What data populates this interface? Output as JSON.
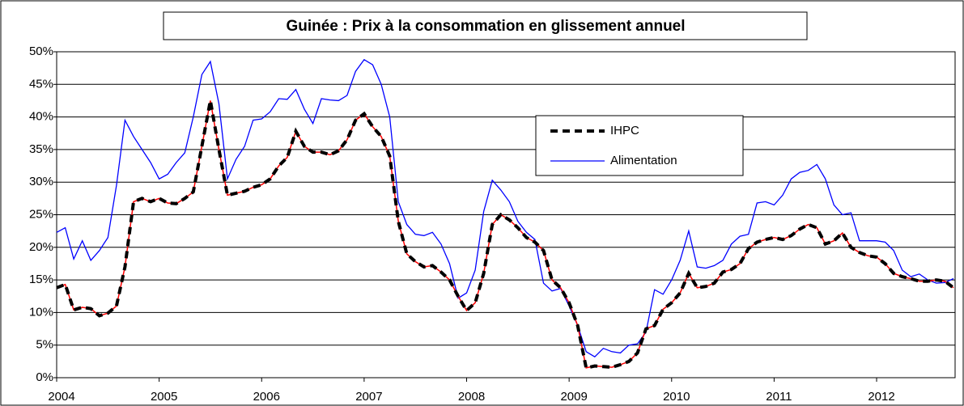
{
  "chart_data": {
    "type": "line",
    "title": "Guinée : Prix à la consommation en glissement annuel",
    "categories": [
      "2004",
      null,
      null,
      null,
      null,
      null,
      null,
      null,
      null,
      null,
      null,
      null,
      "2005",
      null,
      null,
      null,
      null,
      null,
      null,
      null,
      null,
      null,
      null,
      null,
      "2006",
      null,
      null,
      null,
      null,
      null,
      null,
      null,
      null,
      null,
      null,
      null,
      "2007",
      null,
      null,
      null,
      null,
      null,
      null,
      null,
      null,
      null,
      null,
      null,
      "2008",
      null,
      null,
      null,
      null,
      null,
      null,
      null,
      null,
      null,
      null,
      null,
      "2009",
      null,
      null,
      null,
      null,
      null,
      null,
      null,
      null,
      null,
      null,
      null,
      "2010",
      null,
      null,
      null,
      null,
      null,
      null,
      null,
      null,
      null,
      null,
      null,
      "2011",
      null,
      null,
      null,
      null,
      null,
      null,
      null,
      null,
      null,
      null,
      null,
      "2012",
      null,
      null,
      null,
      null,
      null,
      null,
      null,
      null,
      null
    ],
    "series": [
      {
        "name": "IHPC",
        "color": "#000000",
        "dash": true,
        "underlay_color": "#ff0000",
        "values": [
          13.8,
          14.3,
          10.4,
          10.8,
          10.6,
          9.5,
          9.9,
          11,
          17,
          27,
          27.5,
          27,
          27.5,
          26.8,
          26.7,
          27.5,
          28.5,
          35.5,
          42.5,
          35,
          28,
          28.3,
          28.6,
          29.2,
          29.6,
          30.5,
          32.5,
          33.8,
          37.8,
          35.5,
          34.6,
          34.6,
          34.2,
          34.8,
          36.5,
          39.5,
          40.5,
          38.5,
          37,
          34,
          24,
          19,
          17.8,
          17,
          17.2,
          16.2,
          15,
          12.5,
          10.3,
          11.5,
          16,
          23.5,
          25,
          24.2,
          23,
          21.5,
          20.8,
          19.5,
          15,
          13.8,
          11.5,
          8,
          1.5,
          1.8,
          1.7,
          1.6,
          2,
          2.5,
          3.8,
          7.5,
          8,
          10.5,
          11.5,
          13,
          16,
          13.8,
          14,
          14.5,
          16.2,
          16.6,
          17.5,
          19.8,
          20.8,
          21.2,
          21.5,
          21.2,
          21.8,
          22.8,
          23.5,
          23,
          20.5,
          21,
          22.2,
          20,
          19.2,
          18.7,
          18.5,
          17.5,
          16,
          15.5,
          15.2,
          14.8,
          14.8,
          15,
          14.8,
          13.8
        ]
      },
      {
        "name": "Alimentation",
        "color": "#0000ff",
        "dash": false,
        "values": [
          22.3,
          23,
          18.2,
          21,
          18,
          19.5,
          21.5,
          29.5,
          39.5,
          37,
          35,
          33,
          30.5,
          31.2,
          33,
          34.5,
          40,
          46.5,
          48.5,
          42,
          30.5,
          33.5,
          35.5,
          39.5,
          39.7,
          40.8,
          42.8,
          42.7,
          44.2,
          41.2,
          39,
          42.8,
          42.6,
          42.5,
          43.3,
          47,
          48.8,
          48,
          45,
          40,
          27,
          23.5,
          22,
          21.8,
          22.3,
          20.5,
          17.5,
          12.2,
          13,
          16.5,
          25.5,
          30.3,
          28.8,
          27,
          24,
          22.3,
          21.2,
          14.5,
          13.3,
          13.7,
          11,
          8,
          4,
          3.2,
          4.5,
          4,
          3.8,
          5,
          5.2,
          7,
          13.5,
          12.8,
          15,
          18,
          22.5,
          17,
          16.8,
          17.2,
          18,
          20.5,
          21.7,
          22,
          26.8,
          27,
          26.5,
          28,
          30.5,
          31.5,
          31.8,
          32.7,
          30.5,
          26.5,
          25,
          25.3,
          21,
          21,
          21,
          20.8,
          19.5,
          16.5,
          15.5,
          15.9,
          15,
          14.5,
          14.6,
          15.2
        ]
      }
    ],
    "ylim": [
      0,
      50
    ],
    "yticks": [
      {
        "value": 0,
        "label": "0%"
      },
      {
        "value": 5,
        "label": "5%"
      },
      {
        "value": 10,
        "label": "10%"
      },
      {
        "value": 15,
        "label": "15%"
      },
      {
        "value": 20,
        "label": "20%"
      },
      {
        "value": 25,
        "label": "25%"
      },
      {
        "value": 30,
        "label": "30%"
      },
      {
        "value": 35,
        "label": "35%"
      },
      {
        "value": 40,
        "label": "40%"
      },
      {
        "value": 45,
        "label": "45%"
      },
      {
        "value": 50,
        "label": "50%"
      }
    ],
    "grid": true,
    "legend": "upper-right"
  }
}
